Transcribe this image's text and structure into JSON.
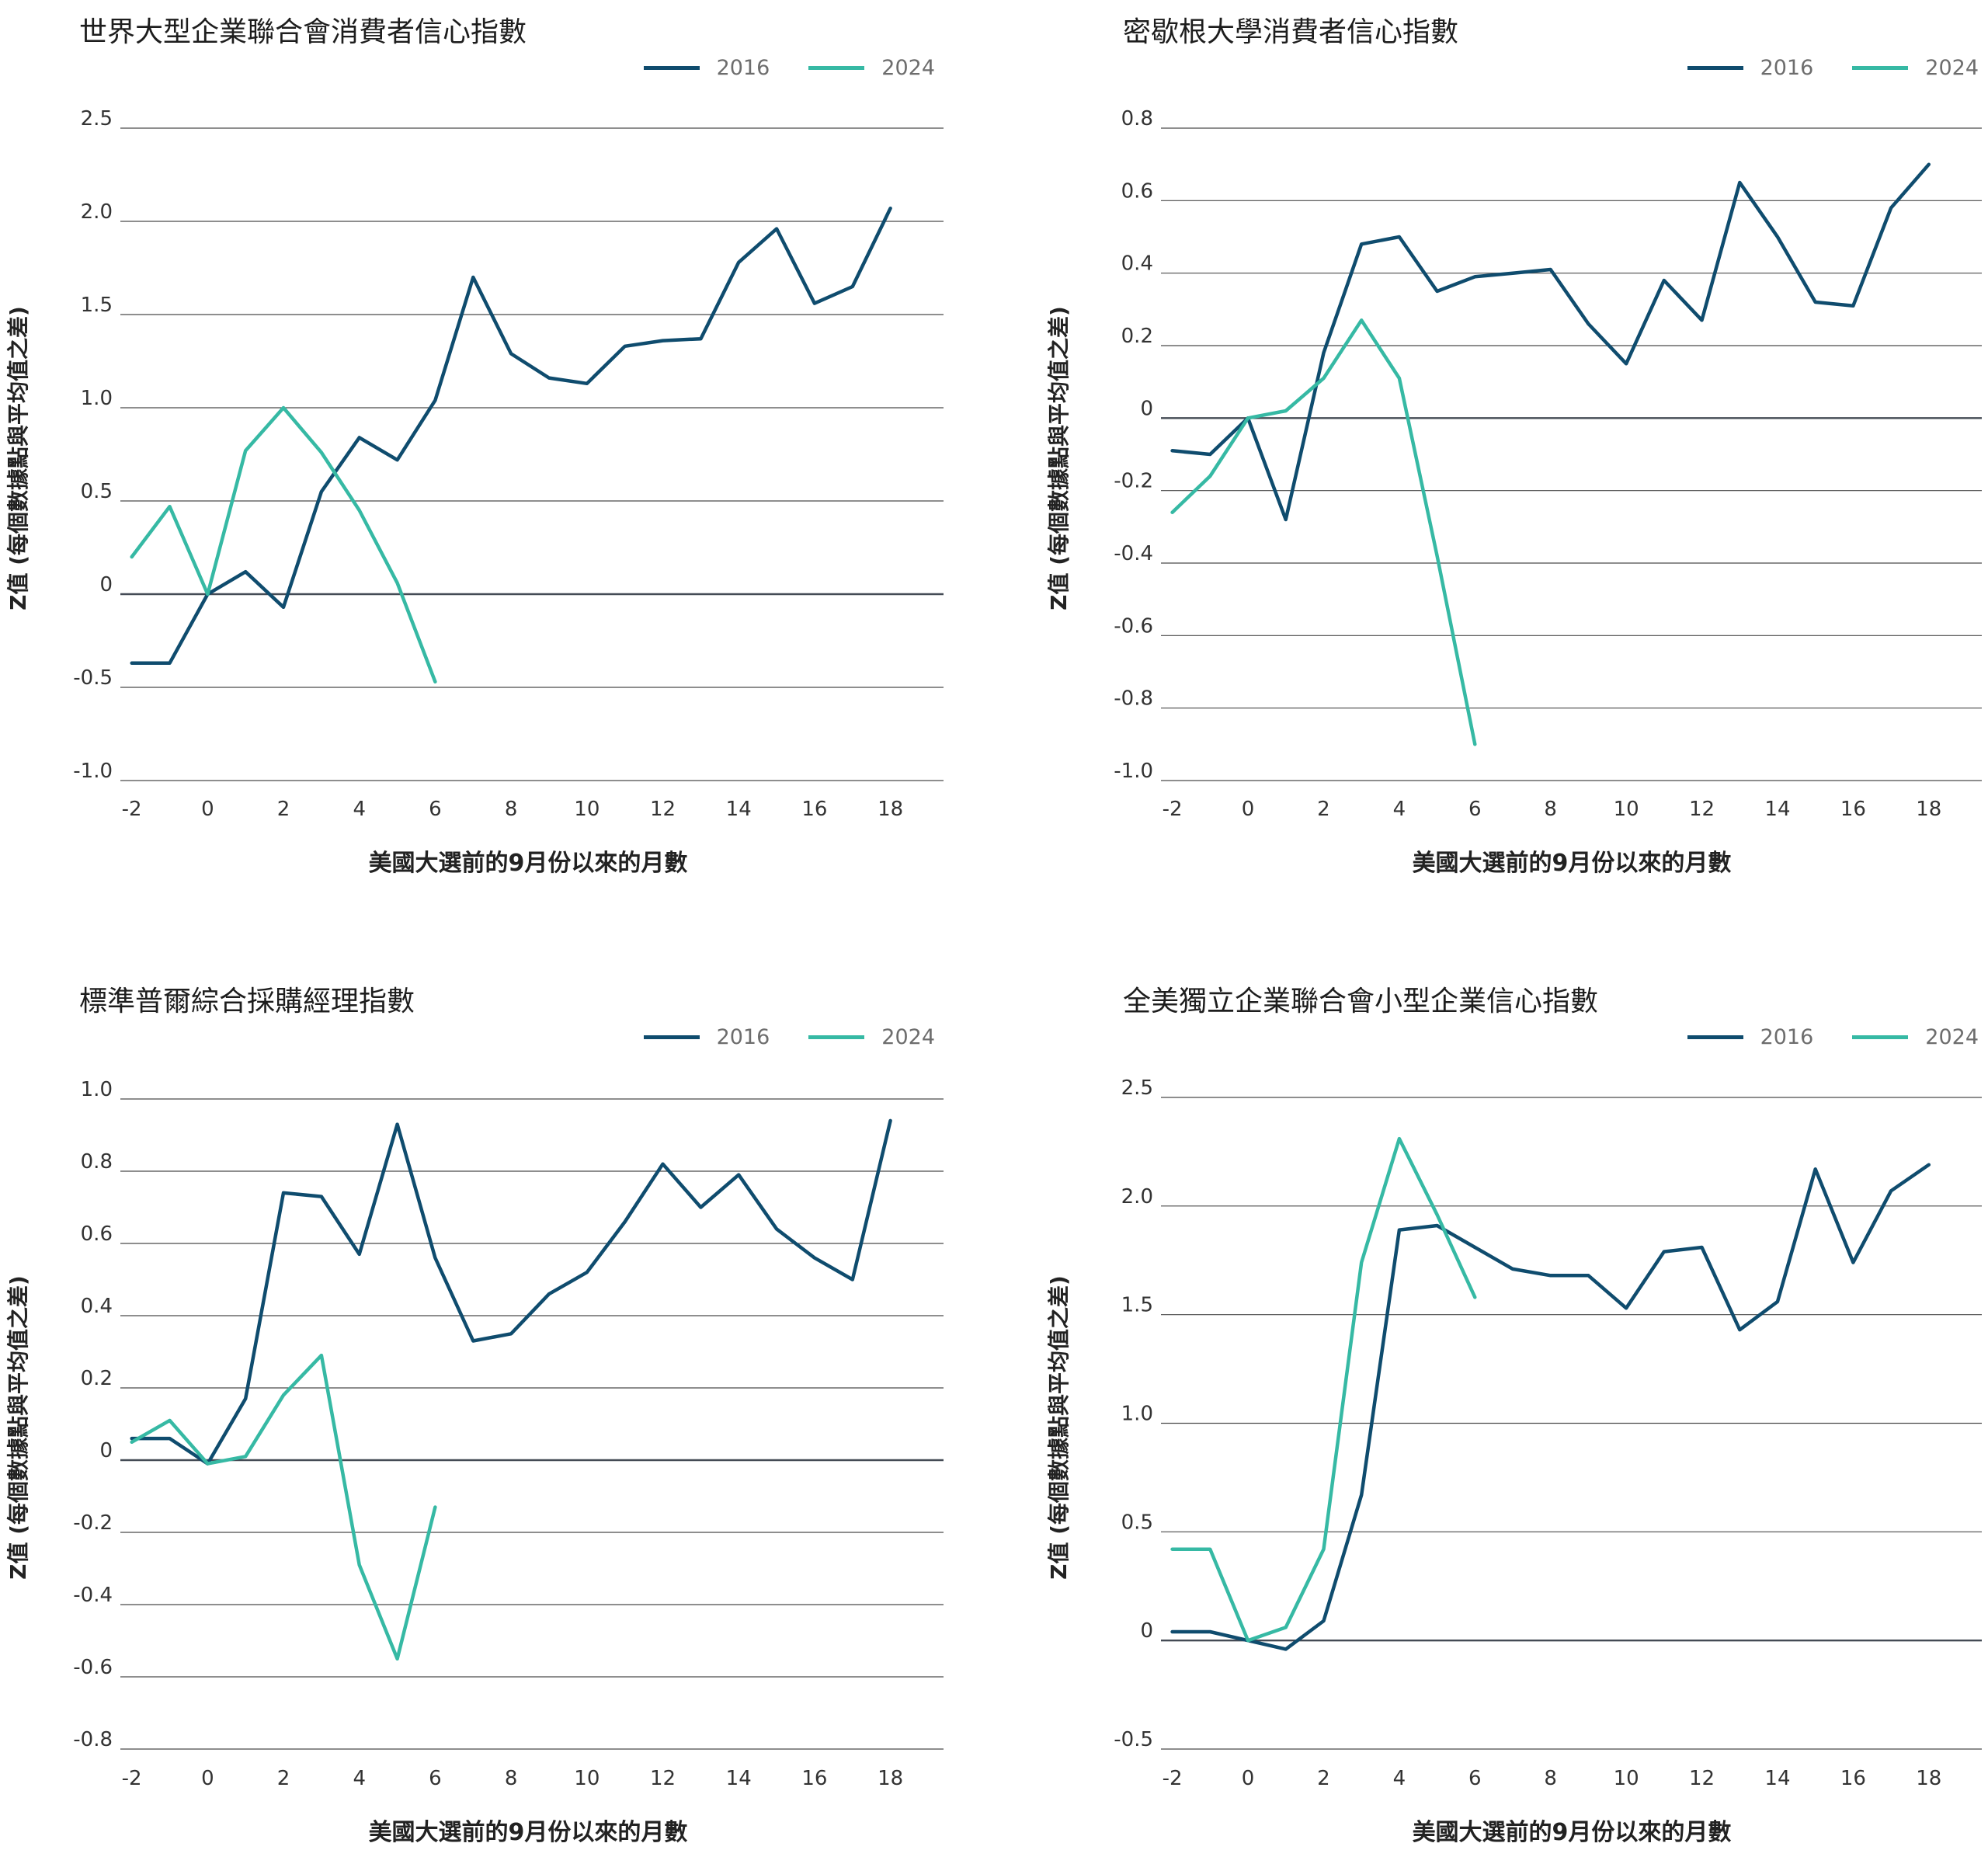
{
  "colors": {
    "s2016": "#0f4c6e",
    "s2024": "#36b9a4",
    "grid": "#4a4a4a",
    "zero": "#444b55",
    "tick": "#333333"
  },
  "chart_data": [
    {
      "type": "line",
      "title": "世界大型企業聯合會消費者信心指數",
      "xlabel": "美國大選前的9月份以來的月數",
      "ylabel": "Z值 (每個數據點與平均值之差)",
      "xlim": [
        -2.3,
        19.4
      ],
      "ylim": [
        -1.0,
        2.5
      ],
      "xticks": [
        -2,
        0,
        2,
        4,
        6,
        8,
        10,
        12,
        14,
        16,
        18
      ],
      "xtick_labels": [
        "-2",
        "0",
        "2",
        "4",
        "6",
        "8",
        "10",
        "12",
        "14",
        "16",
        "18"
      ],
      "yticks": [
        2.5,
        2.0,
        1.5,
        1.0,
        0.5,
        0,
        -0.5,
        -1.0
      ],
      "ytick_labels": [
        "2.5",
        "2.0",
        "1.5",
        "1.0",
        "0.5",
        "0",
        "-0.5",
        "-1.0"
      ],
      "series": [
        {
          "name": "2016",
          "x": [
            -2,
            -1,
            0,
            1,
            2,
            3,
            4,
            5,
            6,
            7,
            8,
            9,
            10,
            11,
            12,
            13,
            14,
            15,
            16,
            17,
            18
          ],
          "values": [
            -0.37,
            -0.37,
            0.0,
            0.12,
            -0.07,
            0.55,
            0.84,
            0.72,
            1.04,
            1.7,
            1.29,
            1.16,
            1.13,
            1.33,
            1.36,
            1.37,
            1.78,
            1.96,
            1.56,
            1.65,
            2.07
          ]
        },
        {
          "name": "2024",
          "x": [
            -2,
            -1,
            0,
            1,
            2,
            3,
            4,
            5,
            6
          ],
          "values": [
            0.2,
            0.47,
            0.0,
            0.77,
            1.0,
            0.76,
            0.45,
            0.06,
            -0.47
          ]
        }
      ]
    },
    {
      "type": "line",
      "title": "密歇根大學消費者信心指數",
      "xlabel": "美國大選前的9月份以來的月數",
      "ylabel": "Z值 (每個數據點與平均值之差)",
      "xlim": [
        -2.3,
        19.4
      ],
      "ylim": [
        -1.0,
        0.8
      ],
      "xticks": [
        -2,
        0,
        2,
        4,
        6,
        8,
        10,
        12,
        14,
        16,
        18
      ],
      "xtick_labels": [
        "-2",
        "0",
        "2",
        "4",
        "6",
        "8",
        "10",
        "12",
        "14",
        "16",
        "18"
      ],
      "yticks": [
        0.8,
        0.6,
        0.4,
        0.2,
        0,
        -0.2,
        -0.4,
        -0.6,
        -0.8,
        -1.0
      ],
      "ytick_labels": [
        "0.8",
        "0.6",
        "0.4",
        "0.2",
        "0",
        "-0.2",
        "-0.4",
        "-0.6",
        "-0.8",
        "-1.0"
      ],
      "series": [
        {
          "name": "2016",
          "x": [
            -2,
            -1,
            0,
            1,
            2,
            3,
            4,
            5,
            6,
            7,
            8,
            9,
            10,
            11,
            12,
            13,
            14,
            15,
            16,
            17,
            18
          ],
          "values": [
            -0.09,
            -0.1,
            0.0,
            -0.28,
            0.18,
            0.48,
            0.5,
            0.35,
            0.39,
            0.4,
            0.41,
            0.26,
            0.15,
            0.38,
            0.27,
            0.65,
            0.5,
            0.32,
            0.31,
            0.58,
            0.7
          ]
        },
        {
          "name": "2024",
          "x": [
            -2,
            -1,
            0,
            1,
            2,
            3,
            4,
            5,
            6
          ],
          "values": [
            -0.26,
            -0.16,
            0.0,
            0.02,
            0.11,
            0.27,
            0.11,
            -0.38,
            -0.9
          ]
        }
      ]
    },
    {
      "type": "line",
      "title": "標準普爾綜合採購經理指數",
      "xlabel": "美國大選前的9月份以來的月數",
      "ylabel": "Z值 (每個數據點與平均值之差)",
      "xlim": [
        -2.3,
        19.4
      ],
      "ylim": [
        -0.8,
        1.0
      ],
      "xticks": [
        -2,
        0,
        2,
        4,
        6,
        8,
        10,
        12,
        14,
        16,
        18
      ],
      "xtick_labels": [
        "-2",
        "0",
        "2",
        "4",
        "6",
        "8",
        "10",
        "12",
        "14",
        "16",
        "18"
      ],
      "yticks": [
        1.0,
        0.8,
        0.6,
        0.4,
        0.2,
        0,
        -0.2,
        -0.4,
        -0.6,
        -0.8
      ],
      "ytick_labels": [
        "1.0",
        "0.8",
        "0.6",
        "0.4",
        "0.2",
        "0",
        "-0.2",
        "-0.4",
        "-0.6",
        "-0.8"
      ],
      "series": [
        {
          "name": "2016",
          "x": [
            -2,
            -1,
            0,
            1,
            2,
            3,
            4,
            5,
            6,
            7,
            8,
            9,
            10,
            11,
            12,
            13,
            14,
            15,
            16,
            17,
            18
          ],
          "values": [
            0.06,
            0.06,
            -0.01,
            0.17,
            0.74,
            0.73,
            0.57,
            0.93,
            0.56,
            0.33,
            0.35,
            0.46,
            0.52,
            0.66,
            0.82,
            0.7,
            0.79,
            0.64,
            0.56,
            0.5,
            0.94
          ]
        },
        {
          "name": "2024",
          "x": [
            -2,
            -1,
            0,
            1,
            2,
            3,
            4,
            5,
            6
          ],
          "values": [
            0.05,
            0.11,
            -0.01,
            0.01,
            0.18,
            0.29,
            -0.29,
            -0.55,
            -0.13
          ]
        }
      ]
    },
    {
      "type": "line",
      "title": "全美獨立企業聯合會小型企業信心指數",
      "xlabel": "美國大選前的9月份以來的月數",
      "ylabel": "Z值 (每個數據點與平均值之差)",
      "xlim": [
        -2.3,
        19.4
      ],
      "ylim": [
        -0.5,
        2.5
      ],
      "xticks": [
        -2,
        0,
        2,
        4,
        6,
        8,
        10,
        12,
        14,
        16,
        18
      ],
      "xtick_labels": [
        "-2",
        "0",
        "2",
        "4",
        "6",
        "8",
        "10",
        "12",
        "14",
        "16",
        "18"
      ],
      "yticks": [
        2.5,
        2.0,
        1.5,
        1.0,
        0.5,
        0,
        -0.5
      ],
      "ytick_labels": [
        "2.5",
        "2.0",
        "1.5",
        "1.0",
        "0.5",
        "0",
        "-0.5"
      ],
      "series": [
        {
          "name": "2016",
          "x": [
            -2,
            -1,
            0,
            1,
            2,
            3,
            4,
            5,
            6,
            7,
            8,
            9,
            10,
            11,
            12,
            13,
            14,
            15,
            16,
            17,
            18
          ],
          "values": [
            0.04,
            0.04,
            0.0,
            -0.04,
            0.09,
            0.67,
            1.89,
            1.91,
            1.81,
            1.71,
            1.68,
            1.68,
            1.53,
            1.79,
            1.81,
            1.43,
            1.56,
            2.17,
            1.74,
            2.07,
            2.19
          ]
        },
        {
          "name": "2024",
          "x": [
            -2,
            -1,
            0,
            1,
            2,
            3,
            4,
            5,
            6
          ],
          "values": [
            0.42,
            0.42,
            0.0,
            0.06,
            0.42,
            1.74,
            2.31,
            1.96,
            1.58
          ]
        }
      ]
    }
  ]
}
